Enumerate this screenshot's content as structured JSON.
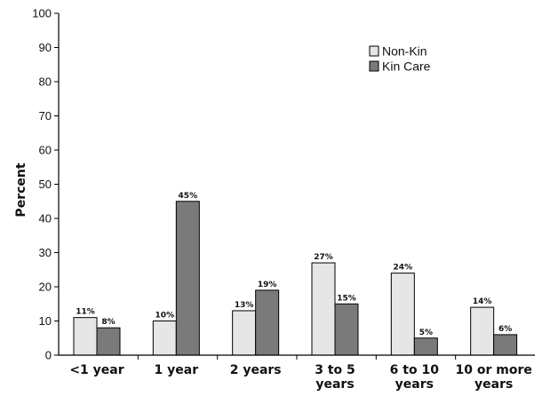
{
  "chart_data": {
    "type": "bar",
    "ylabel": "Percent",
    "xlabel": "",
    "ylim": [
      0,
      100
    ],
    "yticks": [
      0,
      10,
      20,
      30,
      40,
      50,
      60,
      70,
      80,
      90,
      100
    ],
    "grid": false,
    "legend_position": "top-right",
    "categories": [
      [
        "<1 year"
      ],
      [
        "1 year"
      ],
      [
        "2 years"
      ],
      [
        "3 to 5",
        "years"
      ],
      [
        "6 to 10",
        "years"
      ],
      [
        "10 or more",
        "years"
      ]
    ],
    "series": [
      {
        "name": "Non-Kin",
        "color": "#e6e6e6",
        "values": [
          11,
          10,
          13,
          27,
          24,
          14
        ],
        "labels": [
          "11%",
          "10%",
          "13%",
          "27%",
          "24%",
          "14%"
        ]
      },
      {
        "name": "Kin Care",
        "color": "#7a7a7a",
        "values": [
          8,
          45,
          19,
          15,
          5,
          6
        ],
        "labels": [
          "8%",
          "45%",
          "19%",
          "15%",
          "5%",
          "6%"
        ]
      }
    ]
  }
}
